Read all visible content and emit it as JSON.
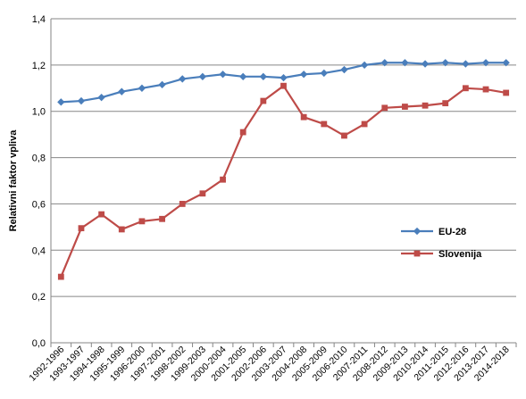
{
  "chart_data": {
    "type": "line",
    "title": "",
    "xlabel": "",
    "ylabel": "Relativni faktor vpliva",
    "ylim": [
      0,
      1.4
    ],
    "yticks": [
      "0,0",
      "0,2",
      "0,4",
      "0,6",
      "0,8",
      "1,0",
      "1,2",
      "1,4"
    ],
    "ytick_values": [
      0,
      0.2,
      0.4,
      0.6,
      0.8,
      1.0,
      1.2,
      1.4
    ],
    "grid": true,
    "legend_position": "right",
    "categories": [
      "1992-1996",
      "1993-1997",
      "1994-1998",
      "1995-1999",
      "1996-2000",
      "1997-2001",
      "1998-2002",
      "1999-2003",
      "2000-2004",
      "2001-2005",
      "2002-2006",
      "2003-2007",
      "2004-2008",
      "2005-2009",
      "2006-2010",
      "2007-2011",
      "2008-2012",
      "2009-2013",
      "2010-2014",
      "2011-2015",
      "2012-2016",
      "2013-2017",
      "2014-2018"
    ],
    "series": [
      {
        "name": "EU-28",
        "color": "#4a7ebb",
        "marker": "diamond",
        "values": [
          1.04,
          1.045,
          1.06,
          1.085,
          1.1,
          1.115,
          1.14,
          1.15,
          1.16,
          1.15,
          1.15,
          1.145,
          1.16,
          1.165,
          1.18,
          1.2,
          1.21,
          1.21,
          1.205,
          1.21,
          1.205,
          1.21,
          1.21
        ]
      },
      {
        "name": "Slovenija",
        "color": "#be4b48",
        "marker": "square",
        "values": [
          0.285,
          0.495,
          0.555,
          0.49,
          0.525,
          0.535,
          0.6,
          0.645,
          0.705,
          0.91,
          1.045,
          1.11,
          0.975,
          0.945,
          0.895,
          0.945,
          1.015,
          1.02,
          1.025,
          1.035,
          1.1,
          1.095,
          1.08
        ]
      }
    ]
  }
}
